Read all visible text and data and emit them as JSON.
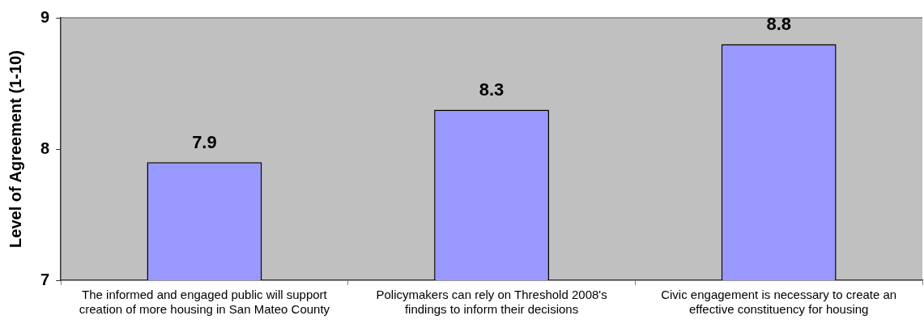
{
  "chart_data": {
    "type": "bar",
    "ylabel": "Level of Agreement (1-10)",
    "categories": [
      "The informed and engaged public will support creation of more housing in San Mateo County",
      "Policymakers can rely on Threshold 2008's findings to inform their decisions",
      "Civic engagement is necessary to create an effective constituency for housing"
    ],
    "values": [
      7.9,
      8.3,
      8.8
    ],
    "color": "#9999ff",
    "ylim": [
      7,
      9
    ],
    "yticks": [
      7,
      8,
      9
    ],
    "grid": false,
    "legend": false,
    "data_labels": true
  }
}
